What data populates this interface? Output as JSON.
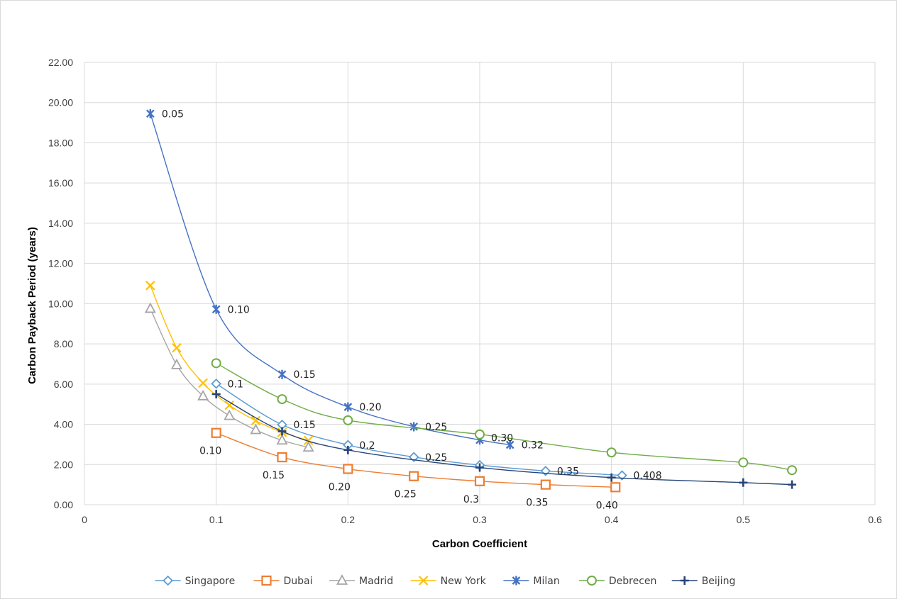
{
  "chart_data": {
    "type": "line",
    "title": "",
    "xlabel": "Carbon Coefficient",
    "ylabel": "Carbon Payback Period (years)",
    "xlim": [
      0,
      0.6
    ],
    "ylim": [
      0,
      22
    ],
    "x_ticks": [
      "0",
      "0.1",
      "0.2",
      "0.3",
      "0.4",
      "0.5",
      "0.6"
    ],
    "y_ticks": [
      "0.00",
      "2.00",
      "4.00",
      "6.00",
      "8.00",
      "10.00",
      "12.00",
      "14.00",
      "16.00",
      "18.00",
      "20.00",
      "22.00"
    ],
    "grid": true,
    "legend_position": "bottom",
    "series": [
      {
        "name": "Singapore",
        "color": "#5b9bd5",
        "marker": "diamond",
        "x": [
          0.1,
          0.15,
          0.2,
          0.25,
          0.3,
          0.35,
          0.408
        ],
        "y": [
          6.02,
          3.98,
          2.97,
          2.37,
          1.97,
          1.68,
          1.46
        ],
        "labels": [
          "0.1",
          "0.15",
          "0.2",
          "0.25",
          "",
          "0.35",
          "0.408"
        ]
      },
      {
        "name": "Dubai",
        "color": "#ed7d31",
        "marker": "square",
        "x": [
          0.1,
          0.15,
          0.2,
          0.25,
          0.3,
          0.35,
          0.403
        ],
        "y": [
          3.57,
          2.36,
          1.78,
          1.42,
          1.17,
          1.0,
          0.87
        ],
        "labels": [
          "0.10",
          "0.15",
          "0.20",
          "0.25",
          "0.3",
          "0.35",
          "0.40"
        ]
      },
      {
        "name": "Madrid",
        "color": "#a5a5a5",
        "marker": "triangle",
        "x": [
          0.05,
          0.07,
          0.09,
          0.11,
          0.13,
          0.15,
          0.17
        ],
        "y": [
          9.75,
          6.95,
          5.4,
          4.42,
          3.72,
          3.2,
          2.85
        ],
        "labels": []
      },
      {
        "name": "New York",
        "color": "#ffc000",
        "marker": "x",
        "x": [
          0.05,
          0.07,
          0.09,
          0.11,
          0.13,
          0.15,
          0.17
        ],
        "y": [
          10.9,
          7.8,
          6.05,
          4.95,
          4.18,
          3.6,
          3.2
        ],
        "labels": []
      },
      {
        "name": "Milan",
        "color": "#4472c4",
        "marker": "star",
        "x": [
          0.05,
          0.1,
          0.15,
          0.2,
          0.25,
          0.3,
          0.323
        ],
        "y": [
          19.45,
          9.72,
          6.48,
          4.86,
          3.88,
          3.22,
          2.98
        ],
        "labels": [
          "0.05",
          "0.10",
          "0.15",
          "0.20",
          "0.25",
          "0.30",
          "0.32"
        ]
      },
      {
        "name": "Debrecen",
        "color": "#70ad47",
        "marker": "circle",
        "x": [
          0.1,
          0.15,
          0.2,
          0.3,
          0.4,
          0.5,
          0.537
        ],
        "y": [
          7.04,
          5.25,
          4.2,
          3.5,
          2.6,
          2.1,
          1.72
        ],
        "labels": []
      },
      {
        "name": "Beijing",
        "color": "#264478",
        "marker": "plus",
        "x": [
          0.1,
          0.15,
          0.2,
          0.3,
          0.4,
          0.5,
          0.537
        ],
        "y": [
          5.5,
          3.65,
          2.72,
          1.85,
          1.35,
          1.1,
          1.0
        ],
        "labels": []
      }
    ]
  }
}
